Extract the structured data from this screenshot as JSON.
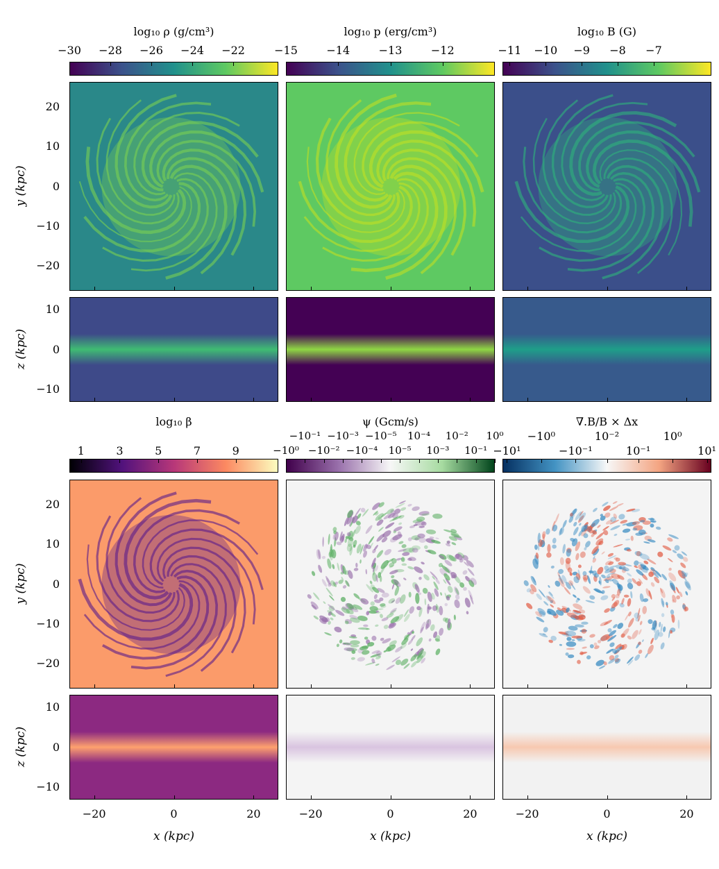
{
  "chart_data": {
    "type": "heatmap",
    "rows": [
      {
        "panels": [
          {
            "id": "density",
            "label": "log₁₀ ρ (g/cm³)",
            "cmap": [
              "#440154",
              "#3b528b",
              "#21918c",
              "#5ec962",
              "#fde725"
            ],
            "range": [
              -30,
              -19.8
            ],
            "ticks": [
              -30,
              -28,
              -26,
              -24,
              -22
            ],
            "tick_labels": [
              "−30",
              "−28",
              "−26",
              "−24",
              "−22"
            ],
            "face_bg": "#2a8889",
            "face_fg": "#7ad151",
            "edge_bg": "#3e4a89",
            "edge_band": "#3fbc73"
          },
          {
            "id": "pressure",
            "label": "log₁₀ p (erg/cm³)",
            "cmap": [
              "#440154",
              "#3b528b",
              "#21918c",
              "#5ec962",
              "#fde725"
            ],
            "range": [
              -15,
              -11
            ],
            "ticks": [
              -15,
              -14,
              -13,
              -12
            ],
            "tick_labels": [
              "−15",
              "−14",
              "−13",
              "−12"
            ],
            "face_bg": "#5ec962",
            "face_fg": "#c2df23",
            "edge_bg": "#440154",
            "edge_band": "#8fd744"
          },
          {
            "id": "bfield",
            "label": "log₁₀ B (G)",
            "cmap": [
              "#440154",
              "#3b528b",
              "#21918c",
              "#5ec962",
              "#fde725"
            ],
            "range": [
              -11.2,
              -5.4
            ],
            "ticks": [
              -11,
              -10,
              -9,
              -8,
              -7
            ],
            "tick_labels": [
              "−11",
              "−10",
              "−9",
              "−8",
              "−7"
            ],
            "face_bg": "#3b4f8a",
            "face_fg": "#2fb47c",
            "edge_bg": "#375a8c",
            "edge_band": "#1f9e89"
          }
        ]
      },
      {
        "panels": [
          {
            "id": "beta",
            "label": "log₁₀ β",
            "cmap": [
              "#000004",
              "#51127c",
              "#b73779",
              "#fc8961",
              "#fcfdbf"
            ],
            "range": [
              0.4,
              11.2
            ],
            "ticks": [
              1,
              3,
              5,
              7,
              9
            ],
            "tick_labels": [
              "1",
              "3",
              "5",
              "7",
              "9"
            ],
            "face_bg": "#fb9b6a",
            "face_fg": "#5a1a8a",
            "edge_bg": "#8c2981",
            "edge_band": "#fea16e"
          },
          {
            "id": "psi",
            "label": "ψ (Gcm/s)",
            "cmap": [
              "#40004b",
              "#9970ab",
              "#f7f7f7",
              "#a6dba0",
              "#00441b"
            ],
            "range": [
              0,
              11
            ],
            "ticks": [
              0,
              1,
              2,
              3,
              4,
              5,
              6,
              7,
              8,
              9,
              10,
              11
            ],
            "tick_labels": [
              "−10⁰",
              "−10⁻¹",
              "−10⁻²",
              "−10⁻³",
              "−10⁻⁴",
              "−10⁻⁵",
              "10⁻⁵",
              "10⁻⁴",
              "10⁻³",
              "10⁻²",
              "10⁻¹",
              "10⁰"
            ],
            "face_bg": "#f4f4f4",
            "face_fg": "#5aae61",
            "face_fg2": "#9970ab",
            "edge_bg": "#f4f4f4",
            "edge_band": "#d9c4e0"
          },
          {
            "id": "divb",
            "label": "∇.B/B × Δx",
            "cmap": [
              "#053061",
              "#4393c3",
              "#f7f7f7",
              "#f4a582",
              "#67001f"
            ],
            "range": [
              0,
              7
            ],
            "ticks": [
              0.15,
              1.3,
              2.45,
              3.5,
              4.55,
              5.7,
              6.85
            ],
            "tick_labels": [
              "−10¹",
              "−10⁰",
              "−10⁻¹",
              "10⁻²",
              "10⁻¹",
              "10⁰",
              "10¹"
            ],
            "face_bg": "#f4f4f4",
            "face_fg": "#e0573f",
            "face_fg2": "#3a8cc2",
            "edge_bg": "#f2f2f2",
            "edge_band": "#f7c8b0"
          }
        ]
      }
    ],
    "y_axis": {
      "label": "y (kpc)",
      "range": [
        -26.2,
        26.2
      ],
      "ticks": [
        20,
        10,
        0,
        -10,
        -20
      ],
      "tick_labels": [
        "20",
        "10",
        "0",
        "−10",
        "−20"
      ]
    },
    "z_axis": {
      "label": "z (kpc)",
      "range": [
        -13.1,
        13.1
      ],
      "ticks": [
        10,
        0,
        -10
      ],
      "tick_labels": [
        "10",
        "0",
        "−10"
      ]
    },
    "x_axis": {
      "label": "x (kpc)",
      "range": [
        -26.2,
        26.2
      ],
      "ticks": [
        -20,
        0,
        20
      ],
      "tick_labels": [
        "−20",
        "0",
        "20"
      ]
    }
  }
}
